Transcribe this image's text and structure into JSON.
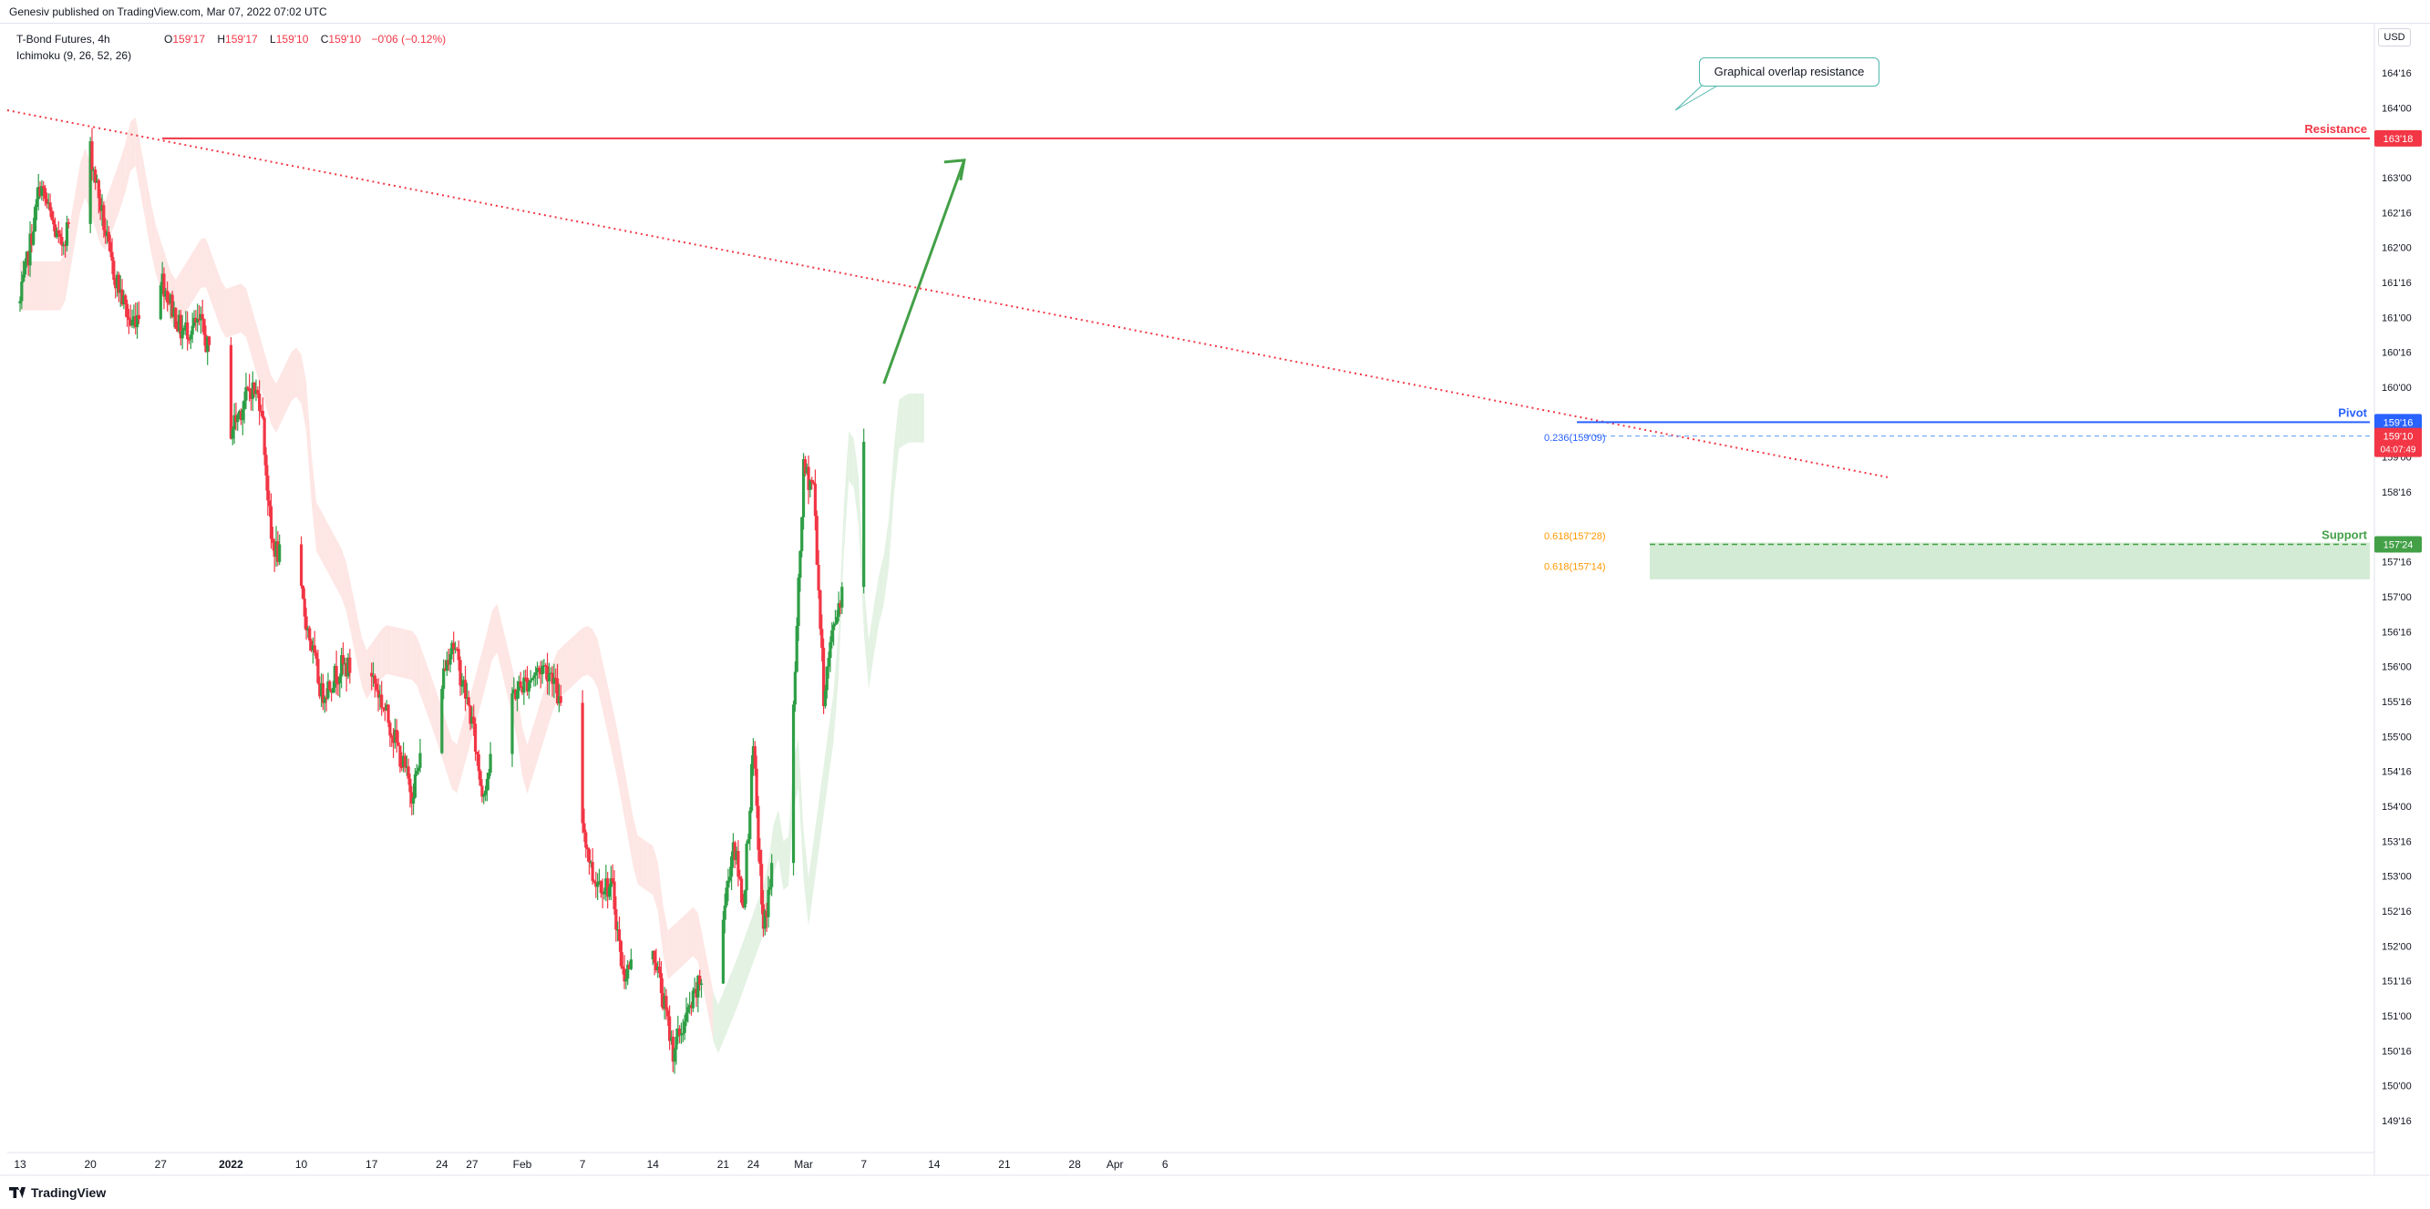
{
  "header": {
    "published": "Genesiv published on TradingView.com, Mar 07, 2022 07:02 UTC"
  },
  "legend": {
    "symbol": "T-Bond Futures, 4h",
    "indicator": "Ichimoku (9, 26, 52, 26)",
    "o_label": "O",
    "o": "159'17",
    "h_label": "H",
    "h": "159'17",
    "l_label": "L",
    "l": "159'10",
    "c_label": "C",
    "c": "159'10",
    "change": "−0'06 (−0.12%)"
  },
  "currency": "USD",
  "brand": "TradingView",
  "colors": {
    "up": "#26a69a",
    "upBody": "#2e9e46",
    "down": "#f23645",
    "resistance": "#f23645",
    "pivot": "#2962ff",
    "support": "#43a047",
    "cloudBear": "#fde5e3",
    "cloudBull": "#e2f1e2",
    "trend": "#f23645",
    "arrow": "#43a047"
  },
  "chart_data": {
    "type": "candlestick",
    "title": "T-Bond Futures, 4h",
    "price_unit": "32nds (159'16 = 159 + 16/32)",
    "y_ticks": [
      "164'16",
      "164'00",
      "163'16",
      "163'00",
      "162'16",
      "162'00",
      "161'16",
      "161'00",
      "160'16",
      "160'00",
      "159'00",
      "158'16",
      "157'16",
      "157'00",
      "156'16",
      "156'00",
      "155'16",
      "155'00",
      "154'16",
      "154'00",
      "153'16",
      "153'00",
      "152'16",
      "152'00",
      "151'16",
      "151'00",
      "150'16",
      "150'00",
      "149'16"
    ],
    "y_tick_values": [
      164.5,
      164.0,
      163.5,
      163.0,
      162.5,
      162.0,
      161.5,
      161.0,
      160.5,
      160.0,
      159.0,
      158.5,
      157.5,
      157.0,
      156.5,
      156.0,
      155.5,
      155.0,
      154.5,
      154.0,
      153.5,
      153.0,
      152.5,
      152.0,
      151.5,
      151.0,
      150.5,
      150.0,
      149.5
    ],
    "x_ticks": [
      "13",
      "20",
      "27",
      "2022",
      "10",
      "17",
      "24",
      "27",
      "Feb",
      "7",
      "14",
      "21",
      "24",
      "Mar",
      "7",
      "14",
      "21",
      "28",
      "Apr",
      "6"
    ],
    "x_tick_dates": [
      "2021-12-13",
      "2021-12-20",
      "2021-12-27",
      "2022-01-03",
      "2022-01-10",
      "2022-01-17",
      "2022-01-24",
      "2022-01-27",
      "2022-02-01",
      "2022-02-07",
      "2022-02-14",
      "2022-02-21",
      "2022-02-24",
      "2022-03-01",
      "2022-03-07",
      "2022-03-14",
      "2022-03-21",
      "2022-03-28",
      "2022-04-01",
      "2022-04-06"
    ],
    "x_range": [
      "2021-12-13",
      "2022-04-09"
    ],
    "price_path": [
      [
        "2021-12-13",
        161.2
      ],
      [
        "2021-12-15",
        162.9
      ],
      [
        "2021-12-17",
        162.0
      ],
      [
        "2021-12-19",
        162.8
      ],
      [
        "2021-12-20",
        163.4
      ],
      [
        "2021-12-22",
        161.8
      ],
      [
        "2021-12-24",
        160.9
      ],
      [
        "2021-12-27",
        161.6
      ],
      [
        "2021-12-29",
        160.8
      ],
      [
        "2021-12-31",
        160.9
      ],
      [
        "2022-01-03",
        159.4
      ],
      [
        "2022-01-05",
        160.0
      ],
      [
        "2022-01-06",
        159.8
      ],
      [
        "2022-01-07",
        157.8
      ],
      [
        "2022-01-10",
        157.0
      ],
      [
        "2022-01-12",
        155.6
      ],
      [
        "2022-01-14",
        156.0
      ],
      [
        "2022-01-17",
        155.9
      ],
      [
        "2022-01-19",
        155.1
      ],
      [
        "2022-01-21",
        154.2
      ],
      [
        "2022-01-24",
        155.8
      ],
      [
        "2022-01-25",
        156.4
      ],
      [
        "2022-01-27",
        155.2
      ],
      [
        "2022-01-28",
        154.2
      ],
      [
        "2022-01-31",
        155.6
      ],
      [
        "2022-02-03",
        156.0
      ],
      [
        "2022-02-04",
        155.9
      ],
      [
        "2022-02-06",
        154.6
      ],
      [
        "2022-02-08",
        153.0
      ],
      [
        "2022-02-10",
        152.8
      ],
      [
        "2022-02-11",
        151.6
      ],
      [
        "2022-02-14",
        152.0
      ],
      [
        "2022-02-16",
        150.5
      ],
      [
        "2022-02-18",
        151.2
      ],
      [
        "2022-02-21",
        152.4
      ],
      [
        "2022-02-22",
        153.5
      ],
      [
        "2022-02-23",
        152.6
      ],
      [
        "2022-02-24",
        154.8
      ],
      [
        "2022-02-25",
        152.2
      ],
      [
        "2022-02-28",
        155.4
      ],
      [
        "2022-03-01",
        158.8
      ],
      [
        "2022-03-02",
        158.6
      ],
      [
        "2022-03-03",
        155.6
      ],
      [
        "2022-03-04",
        156.6
      ],
      [
        "2022-03-05",
        157.2
      ],
      [
        "2022-03-06",
        159.2
      ],
      [
        "2022-03-07",
        159.31
      ]
    ],
    "last_price": "159'10",
    "countdown": "04:07:49",
    "levels": [
      {
        "name": "Resistance",
        "value": 163.5625,
        "label": "163'18"
      },
      {
        "name": "Pivot",
        "value": 159.5,
        "label": "159'16"
      },
      {
        "name": "Support",
        "value": 157.75,
        "label": "157'24"
      }
    ],
    "fib_labels": [
      {
        "text": "0.236(159'09)",
        "value": 159.28
      },
      {
        "text": "0.618(157'28)",
        "value": 157.875
      },
      {
        "text": "0.618(157'14)",
        "value": 157.44
      }
    ],
    "annotation": "Graphical overlap resistance",
    "indicator": "Ichimoku (9, 26, 52, 26)"
  }
}
